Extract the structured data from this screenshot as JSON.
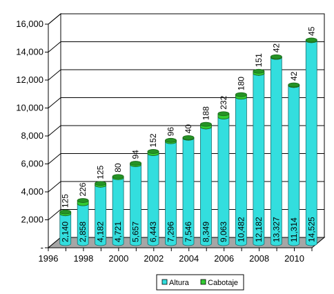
{
  "chart_data": {
    "type": "bar",
    "stacked": true,
    "three_d": true,
    "grid": true,
    "legend_position": "bottom",
    "categories": [
      "1996",
      "1997",
      "1998",
      "1999",
      "2000",
      "2001",
      "2002",
      "2003",
      "2004",
      "2005",
      "2006",
      "2007",
      "2008",
      "2009",
      "2010"
    ],
    "x_tick_labels": [
      "1996",
      "1998",
      "2000",
      "2002",
      "2004",
      "2006",
      "2008",
      "2010"
    ],
    "y_tick_labels": [
      "-",
      "2,000",
      "4,000",
      "6,000",
      "8,000",
      "10,000",
      "12,000",
      "14,000",
      "16,000"
    ],
    "ylim": [
      0,
      16000
    ],
    "series": [
      {
        "name": "Altura",
        "color": "#33dede",
        "values": [
          2140,
          2858,
          4182,
          4721,
          5657,
          6443,
          7296,
          7546,
          8349,
          9063,
          10482,
          12182,
          13327,
          11314,
          14525
        ],
        "labels": [
          "2,140",
          "2,858",
          "4,182",
          "4,721",
          "5,657",
          "6,443",
          "7,296",
          "7,546",
          "8,349",
          "9,063",
          "10,482",
          "12,182",
          "13,327",
          "11,314",
          "14,525"
        ]
      },
      {
        "name": "Cabotaje",
        "color": "#33cc33",
        "values": [
          125,
          226,
          125,
          80,
          94,
          152,
          96,
          40,
          188,
          232,
          180,
          151,
          42,
          42,
          45
        ],
        "labels": [
          "125",
          "226",
          "125",
          "80",
          "94",
          "152",
          "96",
          "40",
          "188",
          "232",
          "180",
          "151",
          "42",
          "42",
          "45"
        ]
      }
    ]
  }
}
